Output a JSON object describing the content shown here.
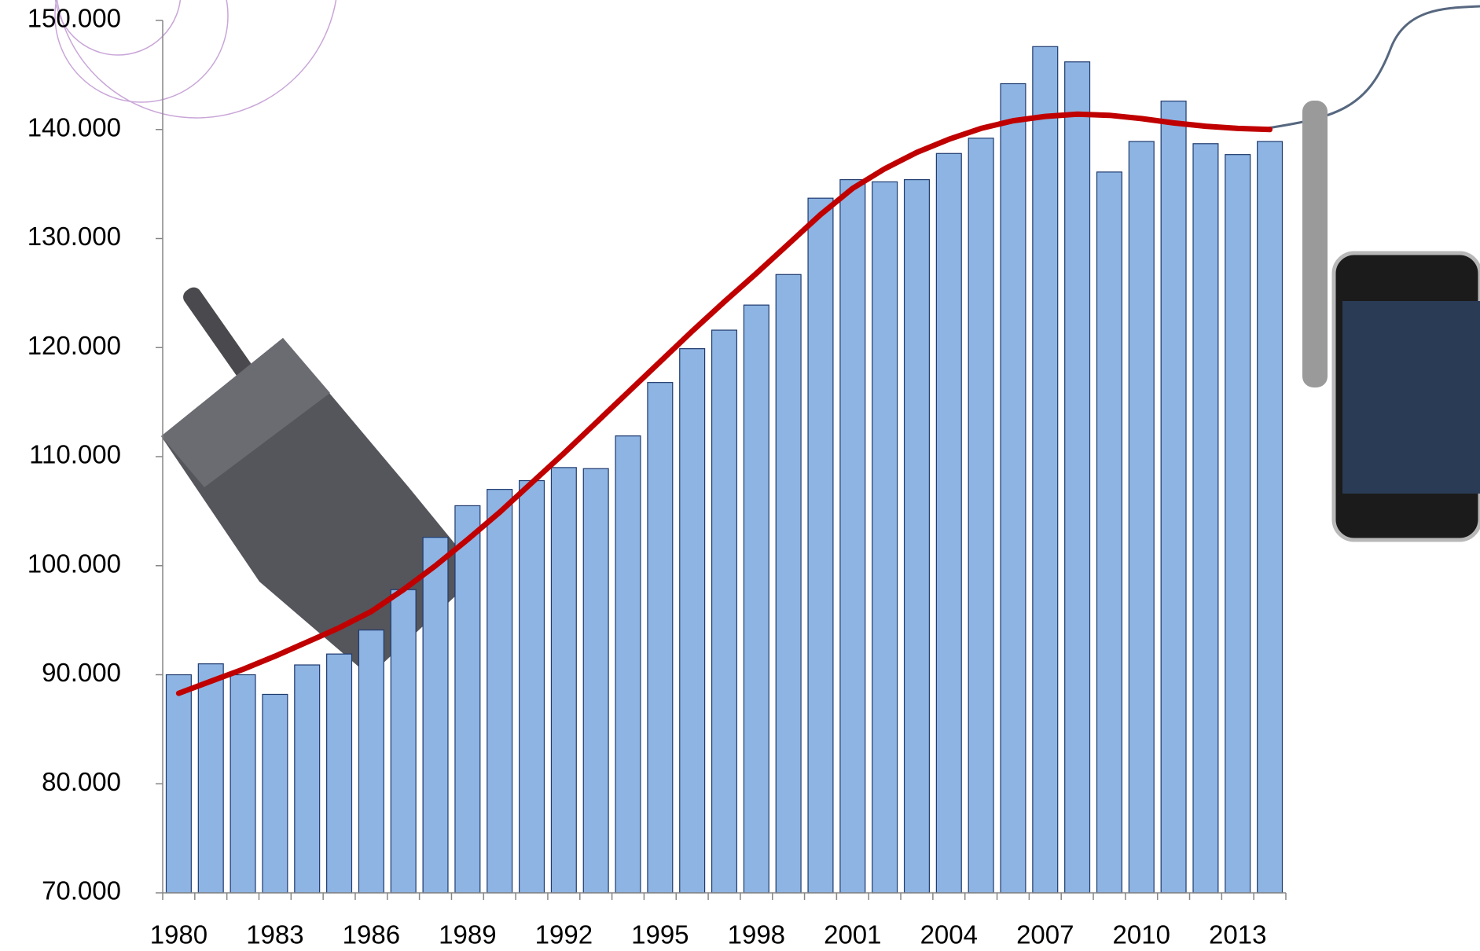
{
  "chart_data": {
    "type": "bar",
    "categories": [
      "1980",
      null,
      null,
      "1983",
      null,
      null,
      "1986",
      null,
      null,
      "1989",
      null,
      null,
      "1992",
      null,
      null,
      "1995",
      null,
      null,
      "1998",
      null,
      null,
      "2001",
      null,
      null,
      "2004",
      null,
      null,
      "2007",
      null,
      null,
      "2010",
      null,
      null,
      "2013",
      null
    ],
    "series": [
      {
        "type": "bar",
        "color": "#8db4e2",
        "values": [
          90000,
          91000,
          90000,
          88200,
          90900,
          91900,
          94100,
          97800,
          102600,
          105500,
          107000,
          107800,
          109000,
          108900,
          111900,
          116800,
          119900,
          121600,
          123900,
          126700,
          133700,
          135400,
          135200,
          135400,
          137800,
          139200,
          144200,
          147600,
          146200,
          136100,
          138900,
          142600,
          138700,
          137700,
          138900
        ]
      },
      {
        "type": "line",
        "color": "#c00000",
        "values": [
          88300,
          89400,
          90500,
          91700,
          93000,
          94300,
          95800,
          97800,
          100000,
          102400,
          104900,
          107600,
          110300,
          113100,
          115900,
          118700,
          121500,
          124200,
          126800,
          129500,
          132200,
          134600,
          136400,
          137900,
          139100,
          140100,
          140800,
          141200,
          141400,
          141300,
          141000,
          140600,
          140300,
          140100,
          140000
        ]
      }
    ],
    "ylim": [
      70000,
      150000
    ],
    "yticks": [
      {
        "value": 70000,
        "label": "70.000"
      },
      {
        "value": 80000,
        "label": "80.000"
      },
      {
        "value": 90000,
        "label": "90.000"
      },
      {
        "value": 100000,
        "label": "100.000"
      },
      {
        "value": 110000,
        "label": "110.000"
      },
      {
        "value": 120000,
        "label": "120.000"
      },
      {
        "value": 130000,
        "label": "130.000"
      },
      {
        "value": 140000,
        "label": "140.000"
      },
      {
        "value": 150000,
        "label": "150.000"
      }
    ]
  }
}
